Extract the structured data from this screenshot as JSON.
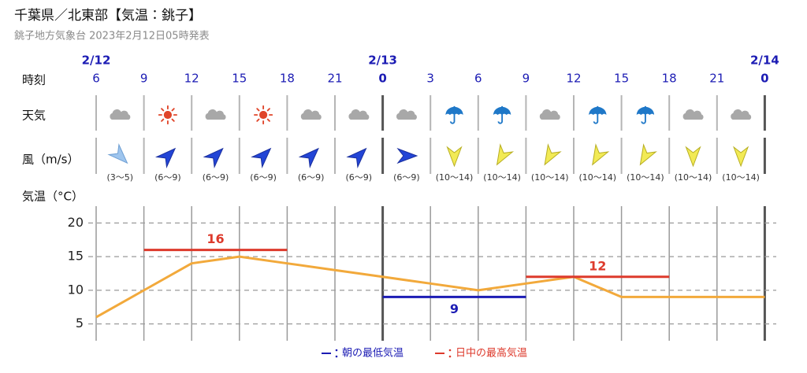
{
  "header": {
    "title": "千葉県／北東部【気温：銚子】",
    "subtitle": "銚子地方気象台 2023年2月12日05時発表"
  },
  "time": {
    "label": "時刻",
    "dates": [
      "2/12",
      null,
      null,
      null,
      null,
      null,
      "2/13",
      null,
      null,
      null,
      null,
      null,
      null,
      null,
      "2/14"
    ]
  },
  "weather": {
    "label": "天気"
  },
  "wind": {
    "label": "風（m/s）",
    "ranges": [
      "(3〜5)",
      "(6〜9)",
      "(6〜9)",
      "(6〜9)",
      "(6〜9)",
      "(6〜9)",
      "(6〜9)",
      "(10〜14)",
      "(10〜14)",
      "(10〜14)",
      "(10〜14)",
      "(10〜14)",
      "(10〜14)",
      "(10〜14)"
    ]
  },
  "chart_data": {
    "type": "line",
    "y_label": "気温（°C）",
    "categories": [
      "6",
      "9",
      "12",
      "15",
      "18",
      "21",
      "0",
      "3",
      "6",
      "9",
      "12",
      "15",
      "18",
      "21",
      "0"
    ],
    "ylim": [
      2.5,
      22.5
    ],
    "yticks": [
      5,
      10,
      15,
      20
    ],
    "grid": true,
    "series": [
      {
        "color": "#f2a93b",
        "values": [
          6,
          10,
          14,
          15,
          14,
          13,
          12,
          11,
          10,
          11,
          12,
          9,
          9,
          9,
          9
        ]
      },
      {
        "name": "朝の最低気温",
        "color": "#1c1cb4",
        "values": [
          null,
          null,
          null,
          null,
          null,
          null,
          9,
          9,
          9,
          9,
          null,
          null,
          null,
          null,
          null
        ]
      },
      {
        "name": "日中の最高気温",
        "color": "#dd3a2c",
        "values": [
          null,
          16,
          16,
          16,
          16,
          null,
          null,
          null,
          null,
          12,
          12,
          12,
          12,
          null,
          null
        ]
      }
    ]
  }
}
